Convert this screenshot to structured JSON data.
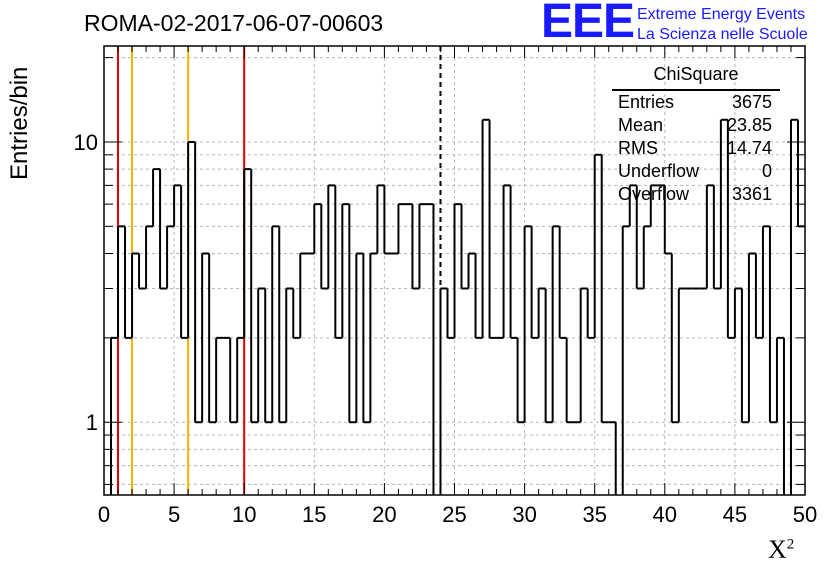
{
  "page": {
    "run_title": "ROMA-02-2017-06-07-00603",
    "logo": {
      "mark": "EEE",
      "line1": "Extreme Energy Events",
      "line2": "La Scienza nelle Scuole"
    }
  },
  "stats": {
    "title": "ChiSquare",
    "rows": [
      {
        "label": "Entries",
        "value": "3675"
      },
      {
        "label": "Mean",
        "value": "23.85"
      },
      {
        "label": "RMS",
        "value": "14.74"
      },
      {
        "label": "Underflow",
        "value": "0"
      },
      {
        "label": "Overflow",
        "value": "3361"
      }
    ]
  },
  "chart_data": {
    "type": "histogram",
    "title": "ROMA-02-2017-06-07-00603",
    "xlabel": "X²",
    "ylabel": "Entries/bin",
    "xlim": [
      0,
      50
    ],
    "ylim": [
      0.55,
      22
    ],
    "yscale": "log",
    "grid": true,
    "bin_width": 0.5,
    "x_ticks": [
      0,
      5,
      10,
      15,
      20,
      25,
      30,
      35,
      40,
      45,
      50
    ],
    "x_tick_labels": [
      "0",
      "5",
      "10",
      "15",
      "20",
      "25",
      "30",
      "35",
      "40",
      "45",
      "50"
    ],
    "y_ticks": [
      1,
      10
    ],
    "y_tick_labels": [
      "1",
      "10"
    ],
    "bin_edges_start": 0,
    "values": [
      0,
      2,
      5,
      2,
      4,
      3,
      5,
      8,
      3,
      5,
      7,
      2,
      10,
      1,
      4,
      1,
      2,
      2,
      1,
      2,
      8,
      1,
      3,
      1,
      5,
      1,
      3,
      2,
      4,
      4,
      6,
      3,
      7,
      2,
      6,
      1,
      4,
      1,
      4,
      7,
      4,
      4,
      6,
      6,
      3,
      6,
      6,
      0,
      3,
      2,
      6,
      3,
      4,
      2,
      12,
      2,
      2,
      7,
      2,
      1,
      5,
      2,
      3,
      1,
      5,
      2,
      1,
      1,
      3,
      2,
      9,
      1,
      1,
      0,
      5,
      7,
      3,
      5,
      7,
      7,
      4,
      1,
      3,
      3,
      3,
      3,
      7,
      3,
      12,
      2,
      3,
      1,
      4,
      2,
      5,
      1,
      2,
      0,
      12,
      5
    ],
    "vertical_lines": [
      {
        "x": 1,
        "color": "#e00000"
      },
      {
        "x": 10,
        "color": "#e00000"
      },
      {
        "x": 2,
        "color": "#f0b400"
      },
      {
        "x": 6,
        "color": "#f0b400"
      },
      {
        "x": 24,
        "color": "#000000",
        "style": "dashed"
      }
    ],
    "stroke_color": "#000000"
  }
}
